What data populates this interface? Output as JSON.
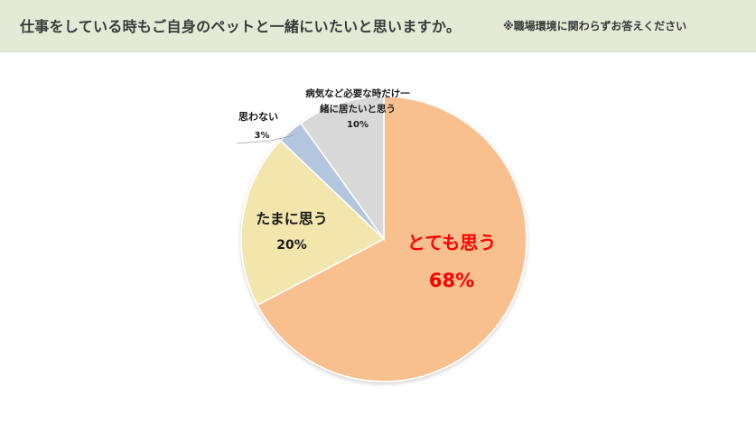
{
  "header": {
    "title": "仕事をしている時もご自身のペットと一緒にいたいと思いますか。",
    "note": "※職場環境に関わらずお答えください"
  },
  "chart_data": {
    "type": "pie",
    "title": "",
    "slices": [
      {
        "label": "とても思う",
        "value": 68,
        "pct_label": "68%",
        "color": "#f8c08f",
        "label_color": "#ff0000"
      },
      {
        "label": "たまに思う",
        "value": 20,
        "pct_label": "20%",
        "color": "#f3e6ac",
        "label_color": "#1a1a1a"
      },
      {
        "label": "思わない",
        "value": 3,
        "pct_label": "3%",
        "color": "#b4c6dd",
        "label_color": "#1a1a1a"
      },
      {
        "label": "病気など必要な時だけ一緒に居たいと思う",
        "label_lines": [
          "病気など必要な時だけ一",
          "緒に居たいと思う"
        ],
        "value": 10,
        "pct_label": "10%",
        "color": "#d8d8d8",
        "label_color": "#1a1a1a"
      }
    ],
    "start_angle_deg": 0,
    "direction": "clockwise",
    "legend": "none",
    "data_labels": true
  }
}
